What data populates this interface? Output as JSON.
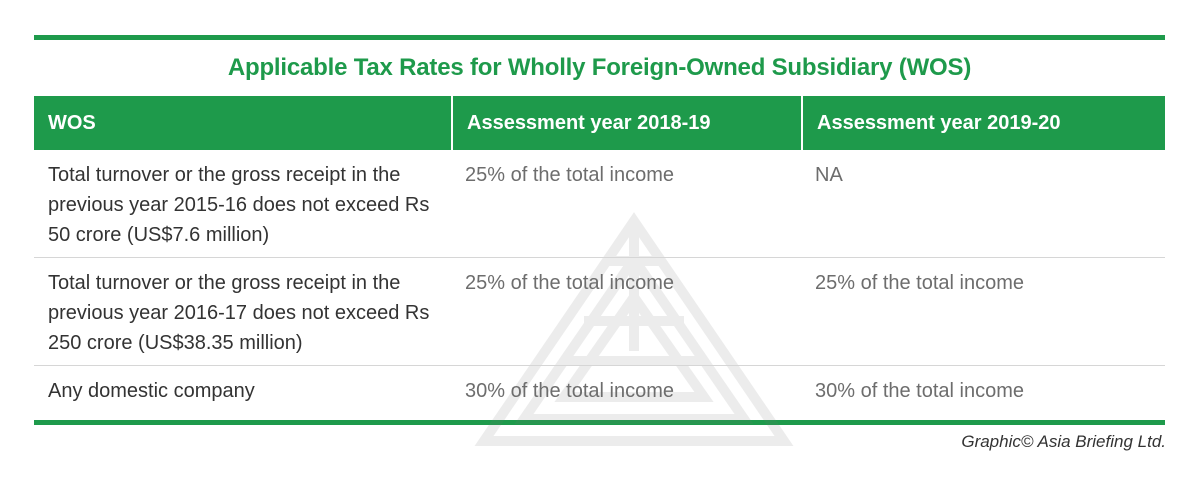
{
  "title": "Applicable Tax Rates for Wholly Foreign-Owned Subsidiary (WOS)",
  "table": {
    "headers": [
      "WOS",
      "Assessment year 2018-19",
      "Assessment year 2019-20"
    ],
    "rows": [
      {
        "category": "Total turnover or the gross receipt in the previous year 2015-16 does not exceed Rs 50 crore (US$7.6 million)",
        "ay_2018_19": "25% of the total income",
        "ay_2019_20": "NA"
      },
      {
        "category": "Total turnover or the gross receipt in the previous year 2016-17 does not exceed Rs 250 crore (US$38.35 million)",
        "ay_2018_19": "25% of the total income",
        "ay_2019_20": "25% of the total income"
      },
      {
        "category": "Any domestic company",
        "ay_2018_19": "30% of the total income",
        "ay_2019_20": "30% of the total income"
      }
    ]
  },
  "credit": "Graphic© Asia Briefing Ltd.",
  "colors": {
    "accent": "#1e9a4b",
    "text": "#333333",
    "muted_text": "#6d6d6d"
  },
  "icons": {
    "watermark": "asia-briefing-logo-watermark"
  }
}
